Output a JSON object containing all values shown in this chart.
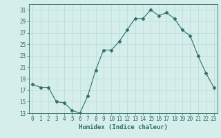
{
  "x": [
    0,
    1,
    2,
    3,
    4,
    5,
    6,
    7,
    8,
    9,
    10,
    11,
    12,
    13,
    14,
    15,
    16,
    17,
    18,
    19,
    20,
    21,
    22,
    23
  ],
  "y": [
    18,
    17.5,
    17.5,
    15,
    14.8,
    13.5,
    13,
    16,
    20.5,
    24,
    24,
    25.5,
    27.5,
    29.5,
    29.5,
    31,
    30,
    30.5,
    29.5,
    27.5,
    26.5,
    23,
    20,
    17.5
  ],
  "line_color": "#2d6e65",
  "marker": "D",
  "marker_size": 2.5,
  "bg_color": "#d5eeeb",
  "grid_color": "#b8dbd8",
  "xlabel": "Humidex (Indice chaleur)",
  "ylim": [
    13,
    32
  ],
  "xlim": [
    -0.5,
    23.5
  ],
  "yticks": [
    13,
    15,
    17,
    19,
    21,
    23,
    25,
    27,
    29,
    31
  ],
  "xticks": [
    0,
    1,
    2,
    3,
    4,
    5,
    6,
    7,
    8,
    9,
    10,
    11,
    12,
    13,
    14,
    15,
    16,
    17,
    18,
    19,
    20,
    21,
    22,
    23
  ],
  "tick_color": "#2d6e65",
  "label_fontsize": 6.5,
  "tick_fontsize": 5.5
}
